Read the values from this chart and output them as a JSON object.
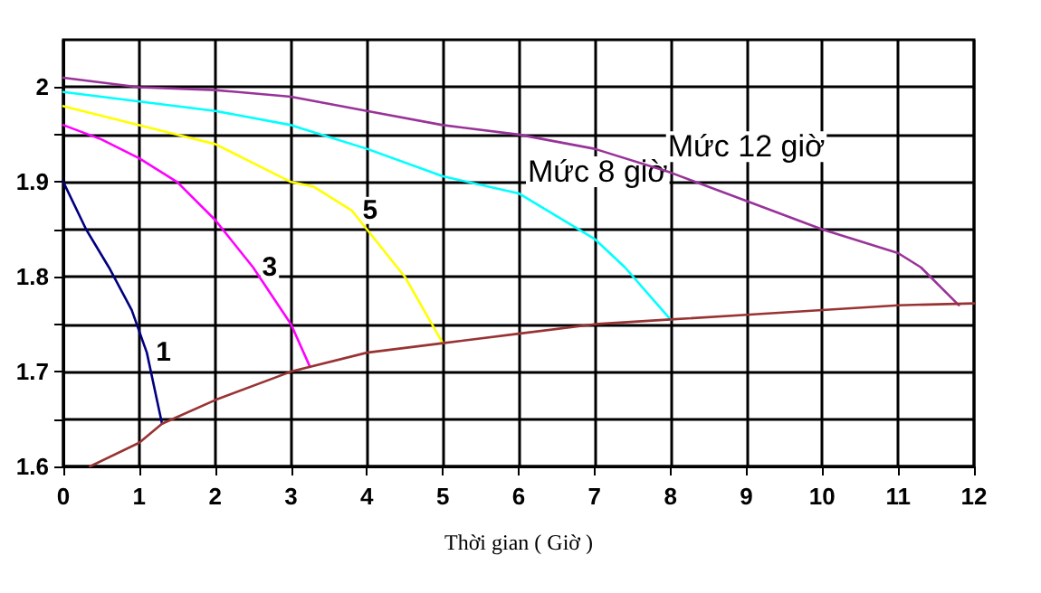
{
  "chart_data": {
    "type": "line",
    "xlabel": "Thời gian ( Giờ )",
    "xlim": [
      0,
      12
    ],
    "xticks": [
      0,
      1,
      2,
      3,
      4,
      5,
      6,
      7,
      8,
      9,
      10,
      11,
      12
    ],
    "ylim": [
      1.6,
      2.05
    ],
    "yticks": [
      1.6,
      {
        "value": 1.65,
        "label": null
      },
      1.7,
      {
        "value": 1.75,
        "label": null
      },
      1.8,
      {
        "value": 1.85,
        "label": null
      },
      1.9,
      {
        "value": 1.95,
        "label": null
      },
      2
    ],
    "grid": true,
    "marker": "none",
    "line_style": "solid",
    "series": [
      {
        "name": "1",
        "color": "#000080",
        "x": [
          0,
          0.3,
          0.6,
          0.9,
          1.1,
          1.3
        ],
        "values": [
          1.9,
          1.85,
          1.81,
          1.765,
          1.72,
          1.645
        ]
      },
      {
        "name": "3",
        "color": "#ff00ff",
        "x": [
          0,
          0.5,
          1,
          1.5,
          2,
          2.5,
          3,
          3.25
        ],
        "values": [
          1.96,
          1.945,
          1.925,
          1.9,
          1.86,
          1.81,
          1.75,
          1.705
        ]
      },
      {
        "name": "5",
        "color": "#ffff00",
        "x": [
          0,
          1,
          1.5,
          2,
          2.5,
          3,
          3.3,
          3.8,
          4,
          4.5,
          5
        ],
        "values": [
          1.98,
          1.96,
          1.95,
          1.94,
          1.92,
          1.9,
          1.895,
          1.87,
          1.85,
          1.8,
          1.73
        ]
      },
      {
        "name": "Mức 8 giờ",
        "color": "#00ffff",
        "x": [
          0,
          1,
          2,
          3,
          4,
          5,
          6,
          7,
          7.4,
          8
        ],
        "values": [
          1.995,
          1.985,
          1.975,
          1.96,
          1.935,
          1.906,
          1.888,
          1.84,
          1.81,
          1.755
        ]
      },
      {
        "name": "Mức 12 giờ",
        "color": "#993399",
        "x": [
          0,
          1,
          2,
          3,
          4,
          5,
          6,
          7,
          8,
          9,
          10,
          11,
          11.3,
          11.8
        ],
        "values": [
          2.01,
          2.0,
          1.997,
          1.99,
          1.975,
          1.96,
          1.95,
          1.935,
          1.91,
          1.88,
          1.85,
          1.825,
          1.81,
          1.77
        ]
      },
      {
        "color": "#993333",
        "x": [
          0.35,
          1,
          1.3,
          2,
          3,
          4,
          5,
          6,
          7,
          8,
          9,
          10,
          11,
          12
        ],
        "values": [
          1.6,
          1.625,
          1.645,
          1.67,
          1.7,
          1.72,
          1.73,
          1.74,
          1.75,
          1.755,
          1.76,
          1.765,
          1.77,
          1.772
        ]
      }
    ]
  }
}
